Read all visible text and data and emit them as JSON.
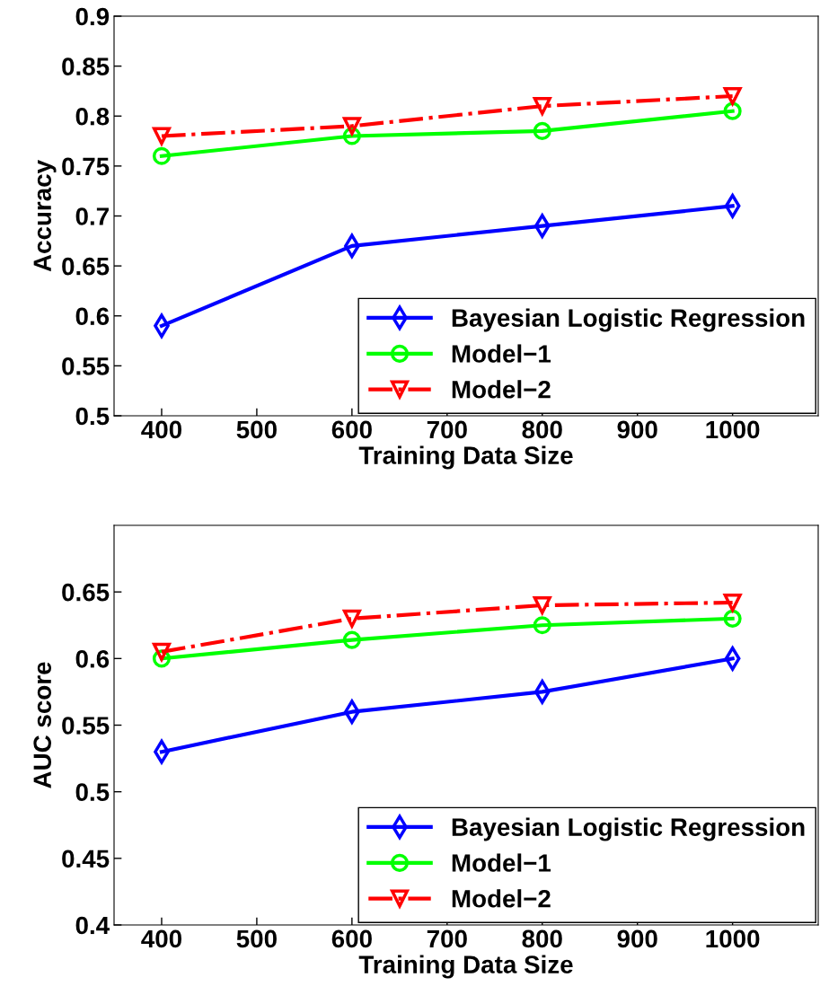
{
  "chart_data": [
    {
      "type": "line",
      "xlabel": "Training Data Size",
      "ylabel": "Accuracy",
      "x": [
        400,
        600,
        800,
        1000
      ],
      "xlim": [
        350,
        1090
      ],
      "xticks": [
        400,
        500,
        600,
        700,
        800,
        900,
        1000
      ],
      "ylim": [
        0.5,
        0.9
      ],
      "yticks": [
        0.5,
        0.55,
        0.6,
        0.65,
        0.7,
        0.75,
        0.8,
        0.85,
        0.9
      ],
      "legend": "bottom right",
      "grid": false,
      "series": [
        {
          "name": "Bayesian Logistic Regression",
          "color": "#0000ff",
          "marker": "diamond",
          "line_style": "solid",
          "values": [
            0.59,
            0.67,
            0.69,
            0.71
          ]
        },
        {
          "name": "Model−1",
          "color": "#00ff00",
          "marker": "circle",
          "line_style": "solid",
          "values": [
            0.76,
            0.78,
            0.785,
            0.805
          ]
        },
        {
          "name": "Model−2",
          "color": "#ff0000",
          "marker": "triangle",
          "line_style": "dashdot",
          "values": [
            0.78,
            0.79,
            0.81,
            0.82
          ]
        }
      ]
    },
    {
      "type": "line",
      "xlabel": "Training Data Size",
      "ylabel": "AUC score",
      "x": [
        400,
        600,
        800,
        1000
      ],
      "xlim": [
        350,
        1090
      ],
      "xticks": [
        400,
        500,
        600,
        700,
        800,
        900,
        1000
      ],
      "ylim": [
        0.4,
        0.7
      ],
      "yticks": [
        0.4,
        0.45,
        0.5,
        0.55,
        0.6,
        0.65
      ],
      "legend": "bottom right",
      "grid": false,
      "series": [
        {
          "name": "Bayesian Logistic Regression",
          "color": "#0000ff",
          "marker": "diamond",
          "line_style": "solid",
          "values": [
            0.53,
            0.56,
            0.575,
            0.6
          ]
        },
        {
          "name": "Model−1",
          "color": "#00ff00",
          "marker": "circle",
          "line_style": "solid",
          "values": [
            0.6,
            0.614,
            0.625,
            0.63
          ]
        },
        {
          "name": "Model−2",
          "color": "#ff0000",
          "marker": "triangle",
          "line_style": "dashdot",
          "values": [
            0.605,
            0.63,
            0.64,
            0.642
          ]
        }
      ]
    }
  ]
}
